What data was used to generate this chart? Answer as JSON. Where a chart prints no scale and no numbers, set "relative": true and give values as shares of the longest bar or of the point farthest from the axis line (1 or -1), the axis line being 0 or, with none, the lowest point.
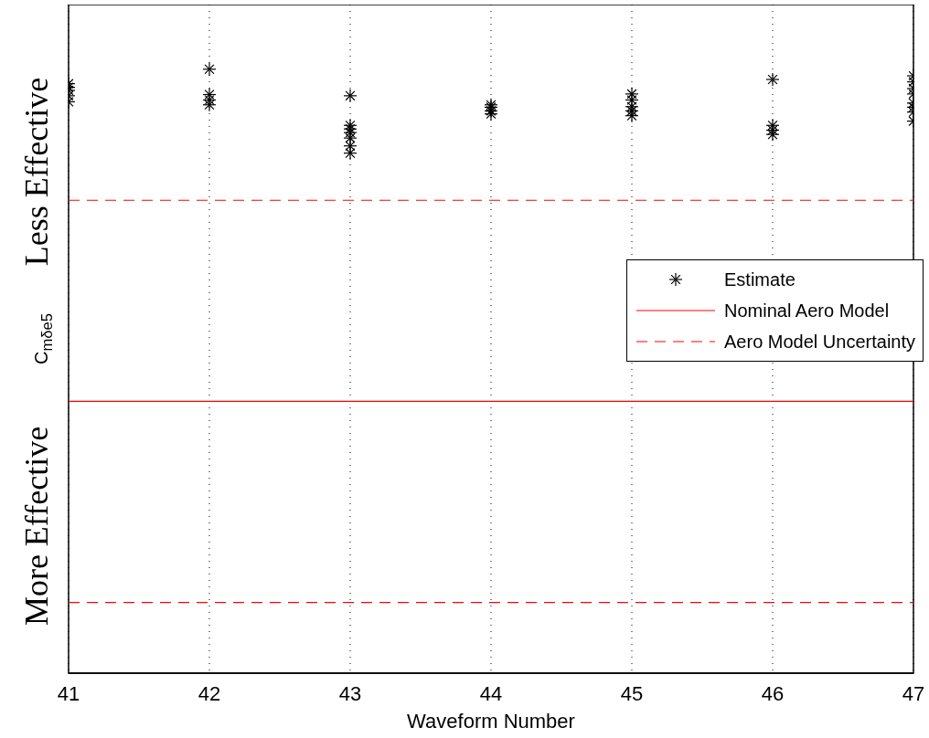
{
  "chart_data": {
    "type": "scatter",
    "relative": true,
    "xlabel": "Waveform Number",
    "ylabel": "C$_{mδe5}$",
    "annotations": [
      "Less Effective",
      "More Effective"
    ],
    "xlim": [
      41,
      47
    ],
    "xticks": [
      41,
      42,
      43,
      44,
      45,
      46,
      47
    ],
    "grid": "x",
    "legend": "right",
    "marker": "cross",
    "series": [
      {
        "name": "Estimate",
        "color": "#000000",
        "x": [
          41,
          41,
          41,
          41,
          41,
          42,
          42,
          42,
          42,
          43,
          43,
          43,
          43,
          43,
          43,
          43,
          44,
          44,
          44,
          44,
          45,
          45,
          45,
          45,
          45,
          46,
          46,
          46,
          46,
          47,
          47,
          47,
          47,
          47,
          47,
          47,
          47
        ],
        "values": [
          0.976,
          0.97,
          0.965,
          0.956,
          0.946,
          1,
          0.958,
          0.949,
          0.941,
          0.956,
          0.907,
          0.901,
          0.895,
          0.886,
          0.873,
          0.861,
          0.941,
          0.937,
          0.931,
          0.926,
          0.959,
          0.949,
          0.938,
          0.931,
          0.923,
          0.983,
          0.907,
          0.899,
          0.892,
          0.989,
          0.979,
          0.968,
          0.959,
          0.944,
          0.937,
          0.929,
          0.914
        ]
      }
    ],
    "ref_lines": [
      {
        "axis": "y",
        "value": 0.45,
        "label": "Nominal Aero Model",
        "color": "#ff0000",
        "line_style": "solid"
      },
      {
        "axis": "y",
        "value": 0.783,
        "label": "Aero Model Uncertainty",
        "color": "#ff0000",
        "line_style": "dashed"
      },
      {
        "axis": "y",
        "value": 0.117,
        "color": "#ff0000",
        "line_style": "dashed"
      }
    ]
  }
}
